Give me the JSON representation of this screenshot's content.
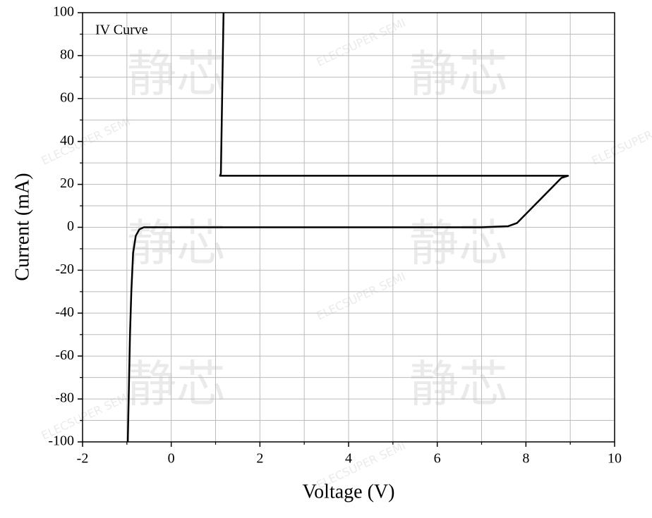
{
  "chart_data": {
    "type": "line",
    "annotation": "IV Curve",
    "x_label": "Voltage (V)",
    "y_label": "Current (mA)",
    "watermark": [
      "ELECSUPER SEMI",
      "静芯"
    ],
    "series": [
      {
        "name": "IV Curve",
        "color": "#000000",
        "x": [
          -0.98,
          -0.96,
          -0.93,
          -0.9,
          -0.86,
          -0.8,
          -0.72,
          -0.62,
          0,
          4,
          7,
          7.6,
          7.8,
          8.8,
          8.95,
          8.9,
          1.1,
          1.12,
          1.18
        ],
        "values": [
          -100,
          -80,
          -50,
          -30,
          -12,
          -4,
          -1,
          0,
          0,
          0,
          0,
          0.5,
          2,
          23,
          24,
          24,
          24,
          25,
          100
        ]
      }
    ],
    "xlim": [
      -2,
      10
    ],
    "xticks": [
      -2,
      0,
      2,
      4,
      6,
      8,
      10
    ],
    "ylim": [
      -100,
      100
    ],
    "yticks": [
      -100,
      -80,
      -60,
      -40,
      -20,
      0,
      20,
      40,
      60,
      80,
      100
    ],
    "minor_xticks": [
      -1,
      1,
      3,
      5,
      7,
      9
    ],
    "minor_yticks": [
      -90,
      -70,
      -50,
      -30,
      -10,
      10,
      30,
      50,
      70,
      90
    ],
    "grid": true
  }
}
